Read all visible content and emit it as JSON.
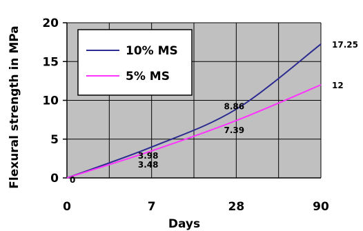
{
  "chart_data": {
    "type": "line",
    "xlabel": "Days",
    "ylabel": "Flexural strength in MPa",
    "x_ticks": [
      "0",
      "7",
      "28",
      "90"
    ],
    "y_ticks": [
      "0",
      "5",
      "10",
      "15",
      "20"
    ],
    "ylim": [
      0,
      20
    ],
    "grid": true,
    "plot_background": "#c0c0c0",
    "legend_placement": "top-left",
    "series": [
      {
        "name": "10% MS",
        "color": "#2a2a90",
        "x": [
          "0",
          "7",
          "28",
          "90"
        ],
        "values": [
          0,
          3.98,
          8.86,
          17.25
        ],
        "labels": [
          "0",
          "3.98",
          "8.86",
          "17.25"
        ]
      },
      {
        "name": "5% MS",
        "color": "#ff33ff",
        "x": [
          "0",
          "7",
          "28",
          "90"
        ],
        "values": [
          0,
          3.48,
          7.39,
          12
        ],
        "labels": [
          "",
          "3.48",
          "7.39",
          "12"
        ]
      }
    ]
  }
}
